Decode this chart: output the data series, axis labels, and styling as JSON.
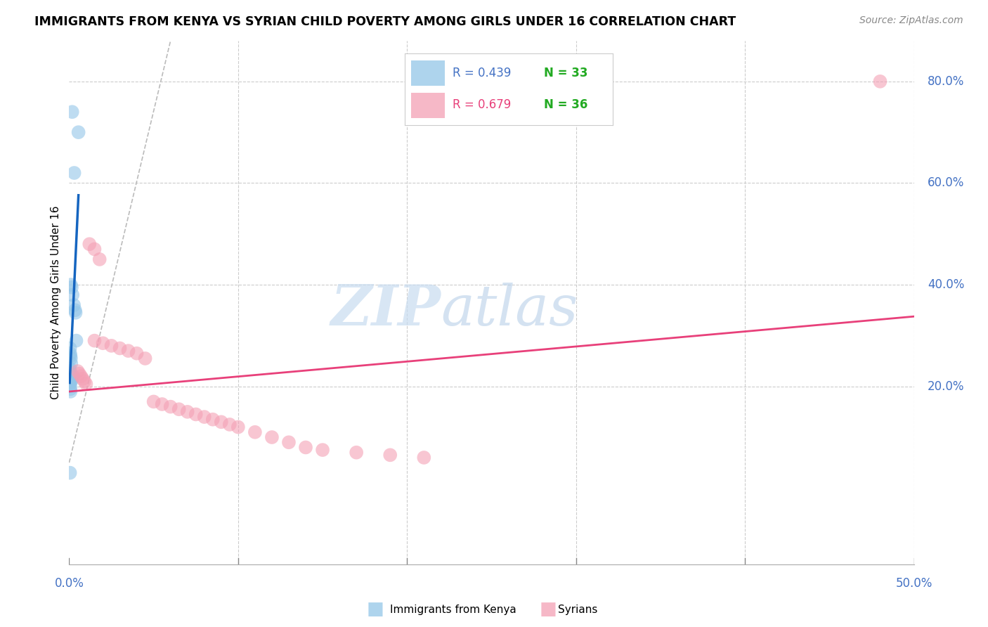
{
  "title": "IMMIGRANTS FROM KENYA VS SYRIAN CHILD POVERTY AMONG GIRLS UNDER 16 CORRELATION CHART",
  "source": "Source: ZipAtlas.com",
  "ylabel": "Child Poverty Among Girls Under 16",
  "xlim": [
    0.0,
    50.0
  ],
  "ylim": [
    -15.0,
    88.0
  ],
  "color_kenya": "#93c6e8",
  "color_syrians": "#f4a0b5",
  "color_kenya_line": "#1565c0",
  "color_syrians_line": "#e8407a",
  "color_ref_line": "#bbbbbb",
  "kenya_R": 0.439,
  "kenya_N": 33,
  "syrians_R": 0.679,
  "syrians_N": 36,
  "kenya_x": [
    0.18,
    0.55,
    0.3,
    0.1,
    0.15,
    0.2,
    0.28,
    0.35,
    0.38,
    0.42,
    0.05,
    0.06,
    0.08,
    0.1,
    0.12,
    0.04,
    0.05,
    0.06,
    0.08,
    0.1,
    0.03,
    0.04,
    0.06,
    0.07,
    0.08,
    0.05,
    0.06,
    0.08,
    0.1,
    0.12,
    0.2,
    0.25,
    0.05
  ],
  "kenya_y": [
    74.0,
    70.0,
    62.0,
    40.0,
    39.5,
    38.0,
    36.0,
    35.0,
    34.5,
    29.0,
    27.5,
    26.5,
    26.0,
    25.5,
    24.5,
    23.5,
    23.0,
    22.5,
    22.0,
    21.5,
    21.0,
    20.5,
    20.0,
    19.5,
    19.0,
    22.0,
    22.5,
    21.8,
    22.2,
    21.0,
    21.5,
    22.0,
    3.0
  ],
  "syrians_x": [
    48.0,
    1.2,
    1.5,
    1.8,
    0.5,
    0.6,
    0.7,
    0.8,
    0.9,
    1.0,
    1.5,
    2.0,
    2.5,
    3.0,
    3.5,
    4.0,
    4.5,
    5.0,
    5.5,
    6.0,
    6.5,
    7.0,
    7.5,
    8.0,
    8.5,
    9.0,
    9.5,
    10.0,
    11.0,
    12.0,
    13.0,
    14.0,
    15.0,
    17.0,
    19.0,
    21.0
  ],
  "syrians_y": [
    80.0,
    48.0,
    47.0,
    45.0,
    23.0,
    22.5,
    22.0,
    21.5,
    21.0,
    20.5,
    29.0,
    28.5,
    28.0,
    27.5,
    27.0,
    26.5,
    25.5,
    17.0,
    16.5,
    16.0,
    15.5,
    15.0,
    14.5,
    14.0,
    13.5,
    13.0,
    12.5,
    12.0,
    11.0,
    10.0,
    9.0,
    8.0,
    7.5,
    7.0,
    6.5,
    6.0
  ]
}
